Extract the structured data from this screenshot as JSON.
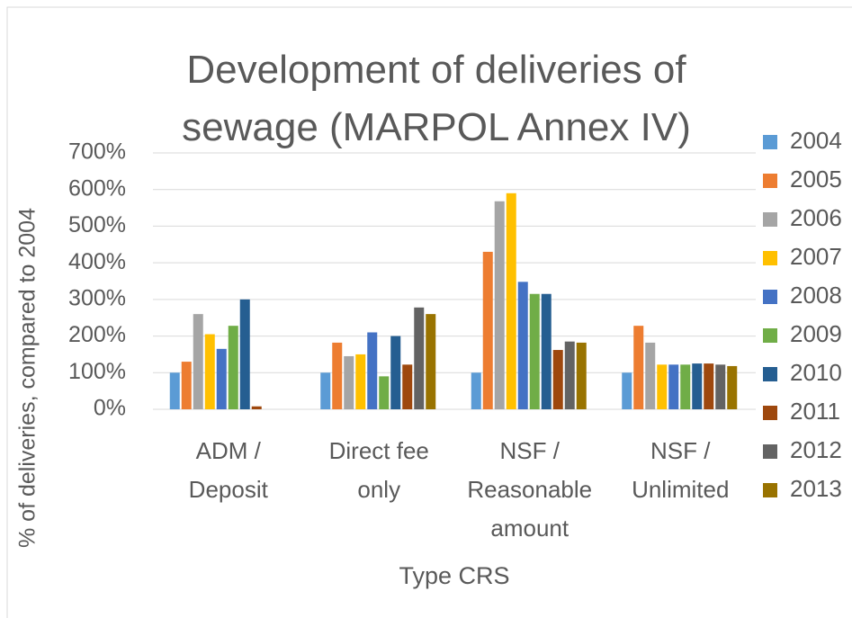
{
  "chart_data": {
    "type": "bar",
    "title": "Development of deliveries of sewage (MARPOL Annex IV)",
    "x_label": "Type CRS",
    "y_label": "% of deliveries, compared to 2004",
    "categories": [
      "ADM / Deposit",
      "Direct fee only",
      "NSF / Reasonable amount",
      "NSF / Unlimited"
    ],
    "series": [
      {
        "name": "2004",
        "color": "#5b9bd5",
        "values": [
          100,
          100,
          100,
          100
        ]
      },
      {
        "name": "2005",
        "color": "#ed7d31",
        "values": [
          130,
          182,
          430,
          228
        ]
      },
      {
        "name": "2006",
        "color": "#a5a5a5",
        "values": [
          260,
          145,
          568,
          182
        ]
      },
      {
        "name": "2007",
        "color": "#ffc000",
        "values": [
          205,
          150,
          590,
          122
        ]
      },
      {
        "name": "2008",
        "color": "#4472c4",
        "values": [
          165,
          210,
          348,
          122
        ]
      },
      {
        "name": "2009",
        "color": "#70ad47",
        "values": [
          228,
          90,
          315,
          122
        ]
      },
      {
        "name": "2010",
        "color": "#255e91",
        "values": [
          300,
          200,
          315,
          125
        ]
      },
      {
        "name": "2011",
        "color": "#9e480e",
        "values": [
          8,
          122,
          162,
          125
        ]
      },
      {
        "name": "2012",
        "color": "#636363",
        "values": [
          0,
          278,
          185,
          122
        ]
      },
      {
        "name": "2013",
        "color": "#997300",
        "values": [
          0,
          260,
          182,
          118
        ]
      }
    ],
    "ylim": [
      0,
      700
    ],
    "yticks": [
      {
        "value": 0,
        "label": "0%"
      },
      {
        "value": 100,
        "label": "100%"
      },
      {
        "value": 200,
        "label": "200%"
      },
      {
        "value": 300,
        "label": "300%"
      },
      {
        "value": 400,
        "label": "400%"
      },
      {
        "value": 500,
        "label": "500%"
      },
      {
        "value": 600,
        "label": "600%"
      },
      {
        "value": 700,
        "label": "700%"
      }
    ],
    "grid": true,
    "legend": "right"
  }
}
